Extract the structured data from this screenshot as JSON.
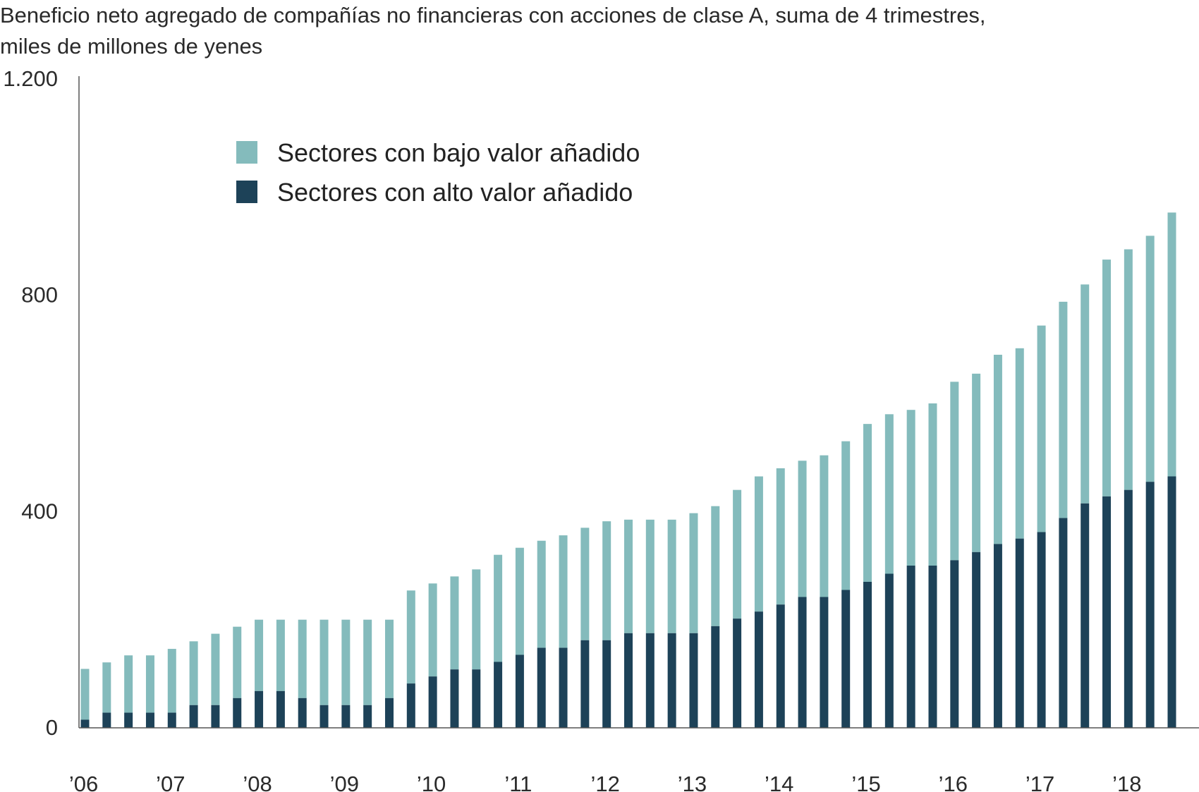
{
  "title_line1": "Beneficio neto agregado de compañías no financieras con acciones de clase A, suma de 4 trimestres,",
  "title_line2": "miles de millones de yenes",
  "chart_data": {
    "type": "bar",
    "stacked": true,
    "y_tick_labels": [
      "0",
      "400",
      "800",
      "1.200"
    ],
    "y_tick_values": [
      0,
      400,
      800,
      1200
    ],
    "ylim": [
      0,
      1200
    ],
    "x_tick_labels": [
      "’06",
      "’07",
      "’08",
      "’09",
      "’10",
      "’11",
      "’12",
      "’13",
      "’14",
      "’15",
      "’16",
      "’17",
      "’18"
    ],
    "bars_per_year": 4,
    "grid": false,
    "legend_position": "upper-left",
    "series": [
      {
        "name": "Sectores con alto valor añadido",
        "color": "#1d4258",
        "values": [
          15,
          28,
          28,
          28,
          28,
          42,
          42,
          55,
          68,
          68,
          55,
          42,
          42,
          42,
          55,
          82,
          95,
          108,
          108,
          122,
          135,
          148,
          148,
          162,
          162,
          175,
          175,
          175,
          175,
          188,
          202,
          215,
          228,
          242,
          242,
          255,
          270,
          285,
          300,
          300,
          310,
          325,
          340,
          350,
          362,
          388,
          415,
          428,
          440,
          455,
          465
        ]
      },
      {
        "name": "Sectores con bajo valor añadido",
        "color": "#84bbbc",
        "values": [
          94,
          93,
          106,
          106,
          118,
          118,
          132,
          132,
          132,
          132,
          145,
          158,
          158,
          158,
          145,
          172,
          172,
          172,
          185,
          198,
          198,
          198,
          208,
          208,
          220,
          210,
          210,
          210,
          222,
          222,
          238,
          250,
          252,
          252,
          262,
          275,
          292,
          295,
          288,
          300,
          330,
          330,
          350,
          352,
          382,
          400,
          405,
          438,
          445,
          455,
          488
        ]
      }
    ]
  }
}
